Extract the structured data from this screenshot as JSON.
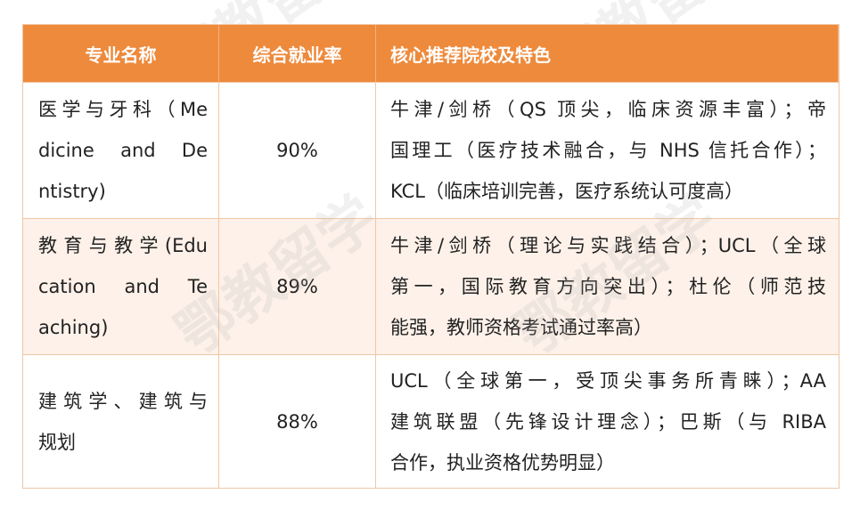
{
  "watermark": "鄂教留学",
  "colors": {
    "header_bg": "#EE8A3C",
    "header_text": "#FFFFFF",
    "alt_row_bg": "#FDF1E9",
    "border": "#EFC7A4"
  },
  "table": {
    "headers": [
      "专业名称",
      "综合就业率",
      "核心推荐院校及特色"
    ],
    "rows": [
      {
        "major_lines": [
          "医学与牙科（Me",
          "dicine and De",
          "ntistry)"
        ],
        "rate": "90%",
        "schools_lines": [
          "牛津/剑桥（QS 顶尖，临床资源丰富）；帝",
          "国理工（医疗技术融合，与 NHS 信托合作）；",
          "KCL（临床培训完善，医疗系统认可度高）"
        ]
      },
      {
        "major_lines": [
          "教育与教学(Edu",
          "cation and Te",
          "aching)"
        ],
        "rate": "89%",
        "schools_lines": [
          "牛津/剑桥（理论与实践结合）；UCL（全球",
          "第一，国际教育方向突出）；杜伦（师范技",
          "能强，教师资格考试通过率高）"
        ]
      },
      {
        "major_lines": [
          "建筑学、建筑与",
          "规划"
        ],
        "rate": "88%",
        "schools_lines": [
          "UCL（全球第一，受顶尖事务所青睐）；AA",
          "建筑联盟（先锋设计理念）；巴斯（与 RIBA",
          "合作，执业资格优势明显）"
        ]
      }
    ]
  }
}
